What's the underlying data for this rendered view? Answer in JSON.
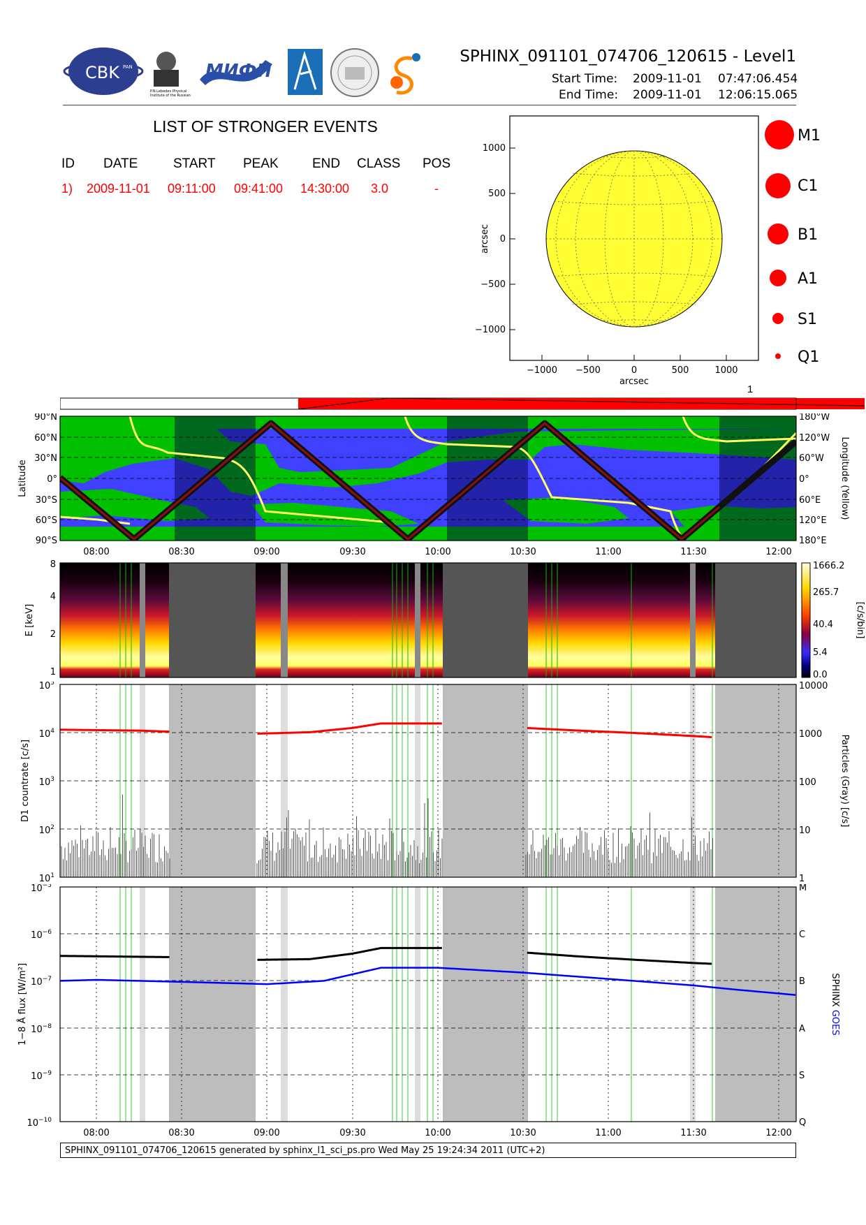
{
  "header": {
    "title": "SPHINX_091101_074706_120615 - Level1",
    "start_label": "Start Time:",
    "start_date": "2009-11-01",
    "start_time": "07:47:06.454",
    "end_label": "End Time:",
    "end_date": "2009-11-01",
    "end_time": "12:06:15.065",
    "logos": {
      "cbk": "CBK",
      "cbk_small": "PAN",
      "lebedev": "P.N.Lebedev Physical Institute of the Russian Academy of Science",
      "mifi": "МИФИ"
    }
  },
  "events": {
    "title": "LIST OF STRONGER EVENTS",
    "columns": [
      "ID",
      "DATE",
      "START",
      "PEAK",
      "END",
      "CLASS",
      "POS"
    ],
    "rows": [
      [
        "1)",
        "2009-11-01",
        "09:11:00",
        "09:41:00",
        "14:30:00",
        "3.0",
        "-"
      ]
    ]
  },
  "sun_map": {
    "x_label": "arcsec",
    "y_label": "arcsec",
    "x_ticks": [
      "−1000",
      "−500",
      "0",
      "500",
      "1000"
    ],
    "y_ticks": [
      "1000",
      "500",
      "0",
      "−500",
      "−1000"
    ],
    "disk_color": "#ffff33"
  },
  "class_legend": [
    "M1",
    "C1",
    "B1",
    "A1",
    "S1",
    "Q1"
  ],
  "goes_bar": {
    "marker": "1"
  },
  "orbit_panel": {
    "y_label": "Latitude",
    "y2_label": "Longitude (Yellow)",
    "lat_ticks": [
      "90°N",
      "60°N",
      "30°N",
      "0°",
      "30°S",
      "60°S",
      "90°S"
    ],
    "lon_ticks": [
      "180°W",
      "120°W",
      "60°W",
      "0°",
      "60°E",
      "120°E",
      "180°E"
    ],
    "x_ticks": [
      "08:00",
      "08:30",
      "09:00",
      "09:30",
      "10:00",
      "10:30",
      "11:00",
      "11:30",
      "12:00"
    ]
  },
  "spectrogram": {
    "y_label": "E [keV]",
    "y_ticks": [
      "8",
      "4",
      "2",
      "1"
    ],
    "cbar_label": "[c/s/bin]",
    "cbar_ticks": [
      "1666.2",
      "265.7",
      "40.4",
      "5.4",
      "0.0"
    ]
  },
  "countrate_panel": {
    "y_label": "D1 countrate [c/s]",
    "y2_label": "Particles (Gray) [c/s]",
    "y_ticks": [
      "10",
      "10",
      "10",
      "10",
      "10"
    ],
    "y_exps": [
      "5",
      "4",
      "3",
      "2",
      "1"
    ],
    "y2_ticks": [
      "10000",
      "1000",
      "100",
      "10",
      "1"
    ]
  },
  "flux_panel": {
    "y_label": "1−8 Å flux [W/m²]",
    "y_ticks_base": "10",
    "y_exps": [
      "−5",
      "−6",
      "−7",
      "−8",
      "−9",
      "−10"
    ],
    "class_ticks": [
      "M",
      "C",
      "B",
      "A",
      "S",
      "Q"
    ],
    "y2_label_sphinx": "SPHINX",
    "y2_label_goes": "GOES",
    "x_ticks": [
      "08:00",
      "08:30",
      "09:00",
      "09:30",
      "10:00",
      "10:30",
      "11:00",
      "11:30",
      "12:00"
    ]
  },
  "chart_data": [
    {
      "type": "line",
      "title": "",
      "xlabel": "",
      "ylabel": "D1 countrate [c/s]",
      "y2label": "Particles (Gray) [c/s]",
      "yscale": "log",
      "ylim": [
        10,
        100000
      ],
      "y2lim": [
        1,
        10000
      ],
      "x_range": [
        "07:47",
        "12:06"
      ],
      "grey_gaps": [
        [
          "08:26",
          "08:56"
        ],
        [
          "10:02",
          "10:31"
        ],
        [
          "11:37",
          "12:06"
        ]
      ],
      "series": [
        {
          "color": "#ff0000",
          "x": [
            "07:47",
            "08:15",
            "08:25",
            "08:56",
            "09:15",
            "09:30",
            "09:40",
            "10:02",
            "10:31",
            "10:50",
            "11:10",
            "11:30",
            "11:37"
          ],
          "values": [
            11500,
            11000,
            10500,
            9500,
            10200,
            12500,
            15500,
            15500,
            12500,
            11000,
            9800,
            8500,
            8000
          ]
        }
      ]
    },
    {
      "type": "line",
      "title": "",
      "xlabel": "",
      "ylabel": "1−8 Å flux [W/m²]",
      "yscale": "log",
      "ylim": [
        1e-10,
        1e-05
      ],
      "series": [
        {
          "name": "SPHINX",
          "color": "#000000",
          "x": [
            "07:47",
            "08:26",
            "08:56",
            "09:15",
            "09:30",
            "09:40",
            "10:02",
            "10:31",
            "10:50",
            "11:10",
            "11:30",
            "11:37"
          ],
          "values": [
            3.4e-07,
            3.2e-07,
            2.8e-07,
            2.9e-07,
            3.8e-07,
            5e-07,
            5e-07,
            4e-07,
            3.3e-07,
            2.8e-07,
            2.4e-07,
            2.3e-07
          ]
        },
        {
          "name": "GOES",
          "color": "#0000ff",
          "x": [
            "07:47",
            "08:00",
            "08:30",
            "09:00",
            "09:20",
            "09:40",
            "10:00",
            "10:30",
            "11:00",
            "11:30",
            "11:45",
            "12:06"
          ],
          "values": [
            1e-07,
            1.05e-07,
            9.5e-08,
            8.5e-08,
            1e-07,
            1.9e-07,
            1.9e-07,
            1.5e-07,
            1.1e-07,
            8e-08,
            6.5e-08,
            5e-08
          ]
        }
      ]
    }
  ],
  "footer": "SPHINX_091101_074706_120615 generated by sphinx_l1_sci_ps.pro Wed May 25 19:24:34 2011 (UTC+2)"
}
